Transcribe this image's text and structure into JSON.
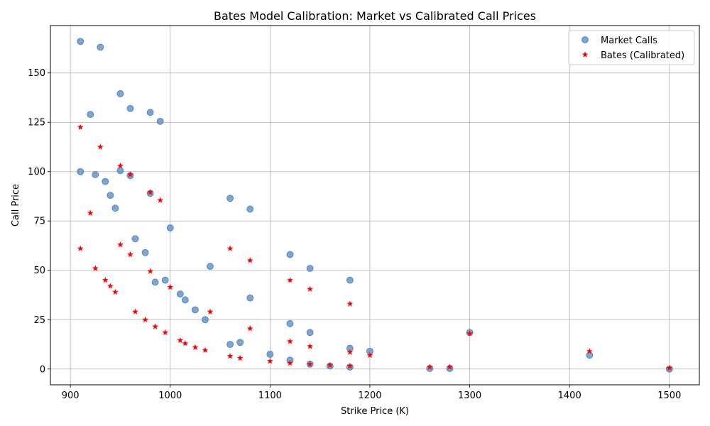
{
  "chart_data": {
    "type": "scatter",
    "title": "Bates Model Calibration: Market vs Calibrated Call Prices",
    "xlabel": "Strike Price (K)",
    "ylabel": "Call Price",
    "xlim": [
      880,
      1530
    ],
    "ylim": [
      -8,
      174
    ],
    "xticks": [
      900,
      1000,
      1100,
      1200,
      1300,
      1400,
      1500
    ],
    "yticks": [
      0,
      25,
      50,
      75,
      100,
      125,
      150
    ],
    "grid": true,
    "legend": "top-right",
    "series": [
      {
        "name": "Market Calls",
        "marker": "circle",
        "color": "#5b8fc4",
        "points": [
          [
            910,
            166
          ],
          [
            930,
            163
          ],
          [
            950,
            139.5
          ],
          [
            960,
            132
          ],
          [
            980,
            130
          ],
          [
            990,
            125.5
          ],
          [
            920,
            129
          ],
          [
            910,
            100
          ],
          [
            925,
            98.5
          ],
          [
            935,
            95
          ],
          [
            940,
            88
          ],
          [
            945,
            81.5
          ],
          [
            950,
            100.5
          ],
          [
            960,
            98
          ],
          [
            980,
            89
          ],
          [
            1000,
            71.5
          ],
          [
            965,
            66
          ],
          [
            975,
            59
          ],
          [
            985,
            44
          ],
          [
            995,
            45
          ],
          [
            1010,
            38
          ],
          [
            1015,
            35
          ],
          [
            1025,
            30
          ],
          [
            1035,
            25
          ],
          [
            1040,
            52
          ],
          [
            1060,
            86.5
          ],
          [
            1080,
            81
          ],
          [
            1080,
            36
          ],
          [
            1060,
            12.5
          ],
          [
            1070,
            13.5
          ],
          [
            1100,
            7.5
          ],
          [
            1120,
            58
          ],
          [
            1140,
            51
          ],
          [
            1120,
            23
          ],
          [
            1140,
            18.5
          ],
          [
            1120,
            4.5
          ],
          [
            1140,
            2.5
          ],
          [
            1160,
            1.5
          ],
          [
            1180,
            45
          ],
          [
            1180,
            10.5
          ],
          [
            1180,
            1
          ],
          [
            1200,
            9
          ],
          [
            1260,
            0.3
          ],
          [
            1280,
            0.3
          ],
          [
            1300,
            18.5
          ],
          [
            1420,
            7
          ],
          [
            1500,
            0
          ]
        ]
      },
      {
        "name": "Bates (Calibrated)",
        "marker": "star",
        "color": "#ff0000",
        "points": [
          [
            910,
            122.5
          ],
          [
            930,
            112.5
          ],
          [
            950,
            103
          ],
          [
            960,
            98.5
          ],
          [
            980,
            89.5
          ],
          [
            990,
            85.5
          ],
          [
            920,
            79
          ],
          [
            910,
            61
          ],
          [
            925,
            51
          ],
          [
            935,
            45
          ],
          [
            940,
            42
          ],
          [
            945,
            39
          ],
          [
            950,
            63
          ],
          [
            960,
            58
          ],
          [
            980,
            49.5
          ],
          [
            1000,
            41.5
          ],
          [
            965,
            29
          ],
          [
            975,
            25
          ],
          [
            985,
            21.5
          ],
          [
            995,
            18.5
          ],
          [
            1010,
            14.5
          ],
          [
            1015,
            13
          ],
          [
            1025,
            11
          ],
          [
            1035,
            9.5
          ],
          [
            1040,
            29
          ],
          [
            1060,
            61
          ],
          [
            1080,
            55
          ],
          [
            1080,
            20.5
          ],
          [
            1060,
            6.5
          ],
          [
            1070,
            5.5
          ],
          [
            1100,
            4
          ],
          [
            1120,
            45
          ],
          [
            1140,
            40.5
          ],
          [
            1120,
            14
          ],
          [
            1140,
            11.5
          ],
          [
            1120,
            3
          ],
          [
            1140,
            2.5
          ],
          [
            1160,
            2
          ],
          [
            1180,
            33
          ],
          [
            1180,
            8.5
          ],
          [
            1180,
            1.5
          ],
          [
            1200,
            7
          ],
          [
            1260,
            1
          ],
          [
            1280,
            1
          ],
          [
            1300,
            18
          ],
          [
            1420,
            9
          ],
          [
            1500,
            0.5
          ]
        ]
      }
    ]
  }
}
